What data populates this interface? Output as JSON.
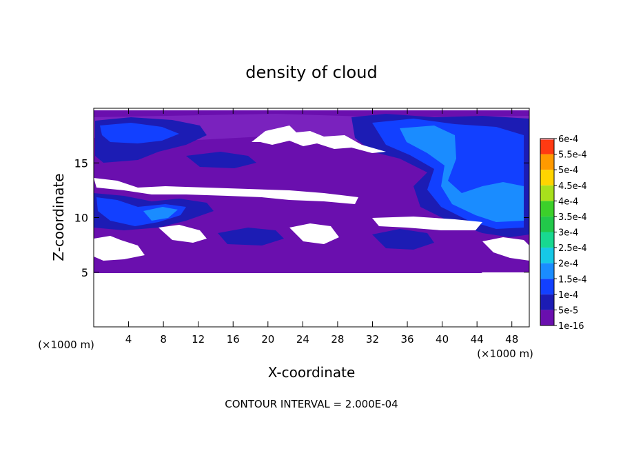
{
  "chart_data": {
    "type": "heatmap",
    "title": "density of cloud",
    "xlabel": "X-coordinate",
    "ylabel": "Z-coordinate",
    "x_unit_label": "(×1000 m)",
    "y_unit_label": "(×1000 m)",
    "footer": "CONTOUR INTERVAL = 2.000E-04",
    "xlim": [
      0,
      50
    ],
    "ylim": [
      0,
      20
    ],
    "x_ticks": [
      4,
      8,
      12,
      16,
      20,
      24,
      28,
      32,
      36,
      40,
      44,
      48
    ],
    "x_tick_labels": [
      "4",
      "8",
      "12",
      "16",
      "20",
      "24",
      "28",
      "32",
      "36",
      "40",
      "44",
      "48"
    ],
    "y_ticks": [
      5,
      10,
      15
    ],
    "y_tick_labels": [
      "5",
      "10",
      "15"
    ],
    "colorbar": {
      "levels": [
        "1e-16",
        "5e-5",
        "1e-4",
        "1.5e-4",
        "2e-4",
        "2.5e-4",
        "3e-4",
        "3.5e-4",
        "4e-4",
        "4.5e-4",
        "5e-4",
        "5.5e-4",
        "6e-4"
      ],
      "colors": [
        "#6a0fae",
        "#1c1cb4",
        "#1240ff",
        "#1a8cff",
        "#16c8e6",
        "#18d890",
        "#22c84a",
        "#3cd02a",
        "#a8e01c",
        "#ffd400",
        "#ff9a00",
        "#ff3a12",
        "#ff8c8c"
      ]
    },
    "regions": [
      {
        "name": "white-below-5km",
        "value": 0,
        "color": "#ffffff",
        "x": [
          0,
          50
        ],
        "z": [
          0,
          5
        ]
      },
      {
        "name": "purple-base",
        "value": 1e-16,
        "color": "#6a0fae",
        "x": [
          0,
          50
        ],
        "z": [
          5,
          19.8
        ]
      },
      {
        "name": "blue-upper-left",
        "value": 5e-05,
        "color": "#1c1cb4",
        "x": [
          0,
          12
        ],
        "z": [
          16,
          18.8
        ]
      },
      {
        "name": "blue-mid-left",
        "value": 0.0001,
        "color": "#1240ff",
        "x": [
          0,
          13
        ],
        "z": [
          9.5,
          12
        ]
      },
      {
        "name": "blue-right-core",
        "value": 0.00015,
        "color": "#1a8cff",
        "x": [
          33,
          48
        ],
        "z": [
          9.5,
          18.5
        ]
      }
    ],
    "grid": false,
    "legend_position": "right"
  }
}
